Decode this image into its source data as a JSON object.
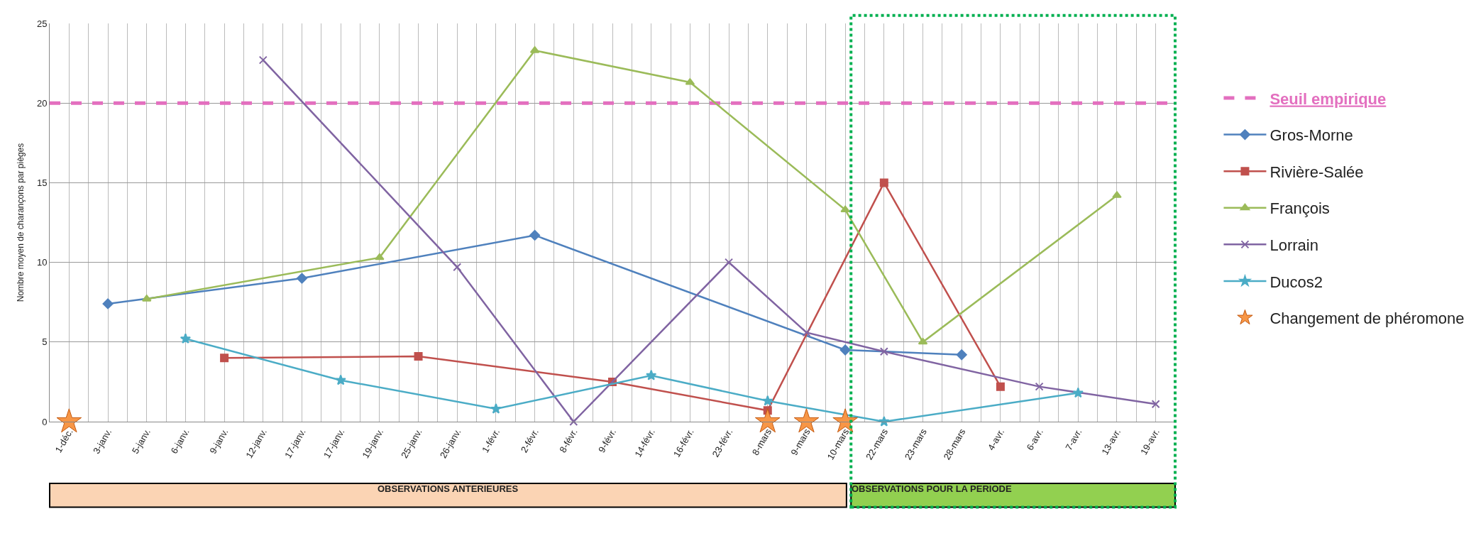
{
  "chart_data": {
    "type": "line",
    "ylabel": "Nombre moyen de charançons par pièges",
    "categories": [
      "1-déc.",
      "3-janv.",
      "5-janv.",
      "6-janv.",
      "9-janv.",
      "12-janv.",
      "17-janv.",
      "17-janv.",
      "19-janv.",
      "25-janv.",
      "26-janv.",
      "1-févr.",
      "2-févr.",
      "8-févr.",
      "9-févr.",
      "14-févr.",
      "16-févr.",
      "23-févr.",
      "8-mars",
      "9-mars",
      "10-mars",
      "22-mars",
      "23-mars",
      "28-mars",
      "4-avr.",
      "6-avr.",
      "7-avr.",
      "13-avr.",
      "19-avr."
    ],
    "series": [
      {
        "name": "Gros-Morne",
        "color": "#4f81bd",
        "marker": "diamond",
        "values": [
          null,
          7.4,
          null,
          null,
          null,
          null,
          9.0,
          null,
          null,
          null,
          null,
          null,
          11.7,
          null,
          null,
          null,
          null,
          null,
          null,
          null,
          4.5,
          null,
          null,
          4.2,
          null,
          null,
          null,
          null,
          null
        ]
      },
      {
        "name": "Rivière-Salée",
        "color": "#c0504d",
        "marker": "square",
        "values": [
          null,
          null,
          null,
          null,
          4.0,
          null,
          null,
          null,
          null,
          4.1,
          null,
          null,
          null,
          null,
          2.5,
          null,
          null,
          null,
          0.7,
          null,
          null,
          15.0,
          null,
          null,
          2.2,
          null,
          null,
          null,
          null
        ]
      },
      {
        "name": "François",
        "color": "#9bbb59",
        "marker": "triangle",
        "values": [
          null,
          null,
          7.7,
          null,
          null,
          null,
          null,
          null,
          10.3,
          null,
          null,
          null,
          23.3,
          null,
          null,
          null,
          21.3,
          null,
          null,
          null,
          13.3,
          null,
          5.0,
          null,
          null,
          null,
          null,
          14.2,
          null
        ]
      },
      {
        "name": "Lorrain",
        "color": "#8064a2",
        "marker": "cross",
        "values": [
          null,
          null,
          null,
          null,
          null,
          22.7,
          null,
          null,
          null,
          null,
          9.7,
          null,
          null,
          0.0,
          null,
          null,
          null,
          10.0,
          null,
          5.6,
          null,
          4.4,
          null,
          null,
          null,
          2.2,
          null,
          null,
          1.1
        ]
      },
      {
        "name": "Ducos2",
        "color": "#4bacc6",
        "marker": "star",
        "values": [
          null,
          null,
          null,
          5.2,
          null,
          null,
          null,
          2.6,
          null,
          null,
          null,
          0.8,
          null,
          null,
          null,
          2.9,
          null,
          null,
          1.3,
          null,
          null,
          0.0,
          null,
          null,
          null,
          null,
          1.8,
          null,
          null
        ]
      },
      {
        "name": "Changement de phéromone",
        "type": "scatter",
        "color": "#f79646",
        "marker": "star",
        "values": [
          0,
          null,
          null,
          null,
          null,
          null,
          null,
          null,
          null,
          null,
          null,
          null,
          null,
          null,
          null,
          null,
          null,
          null,
          0,
          0,
          0,
          null,
          null,
          null,
          null,
          null,
          null,
          null,
          null
        ]
      }
    ],
    "ref_lines": [
      {
        "axis": "y",
        "value": 20,
        "label": "Seuil empirique",
        "color": "#e36fbf",
        "line_style": "dashed"
      }
    ],
    "annotations": [
      "OBSERVATIONS ANTERIEURES",
      "OBSERVATIONS POUR LA PERIODE"
    ],
    "ylim": [
      0,
      25
    ],
    "yticks": [
      0,
      5,
      10,
      15,
      20,
      25
    ],
    "grid": true,
    "legend": "right",
    "line_style": "solid"
  }
}
